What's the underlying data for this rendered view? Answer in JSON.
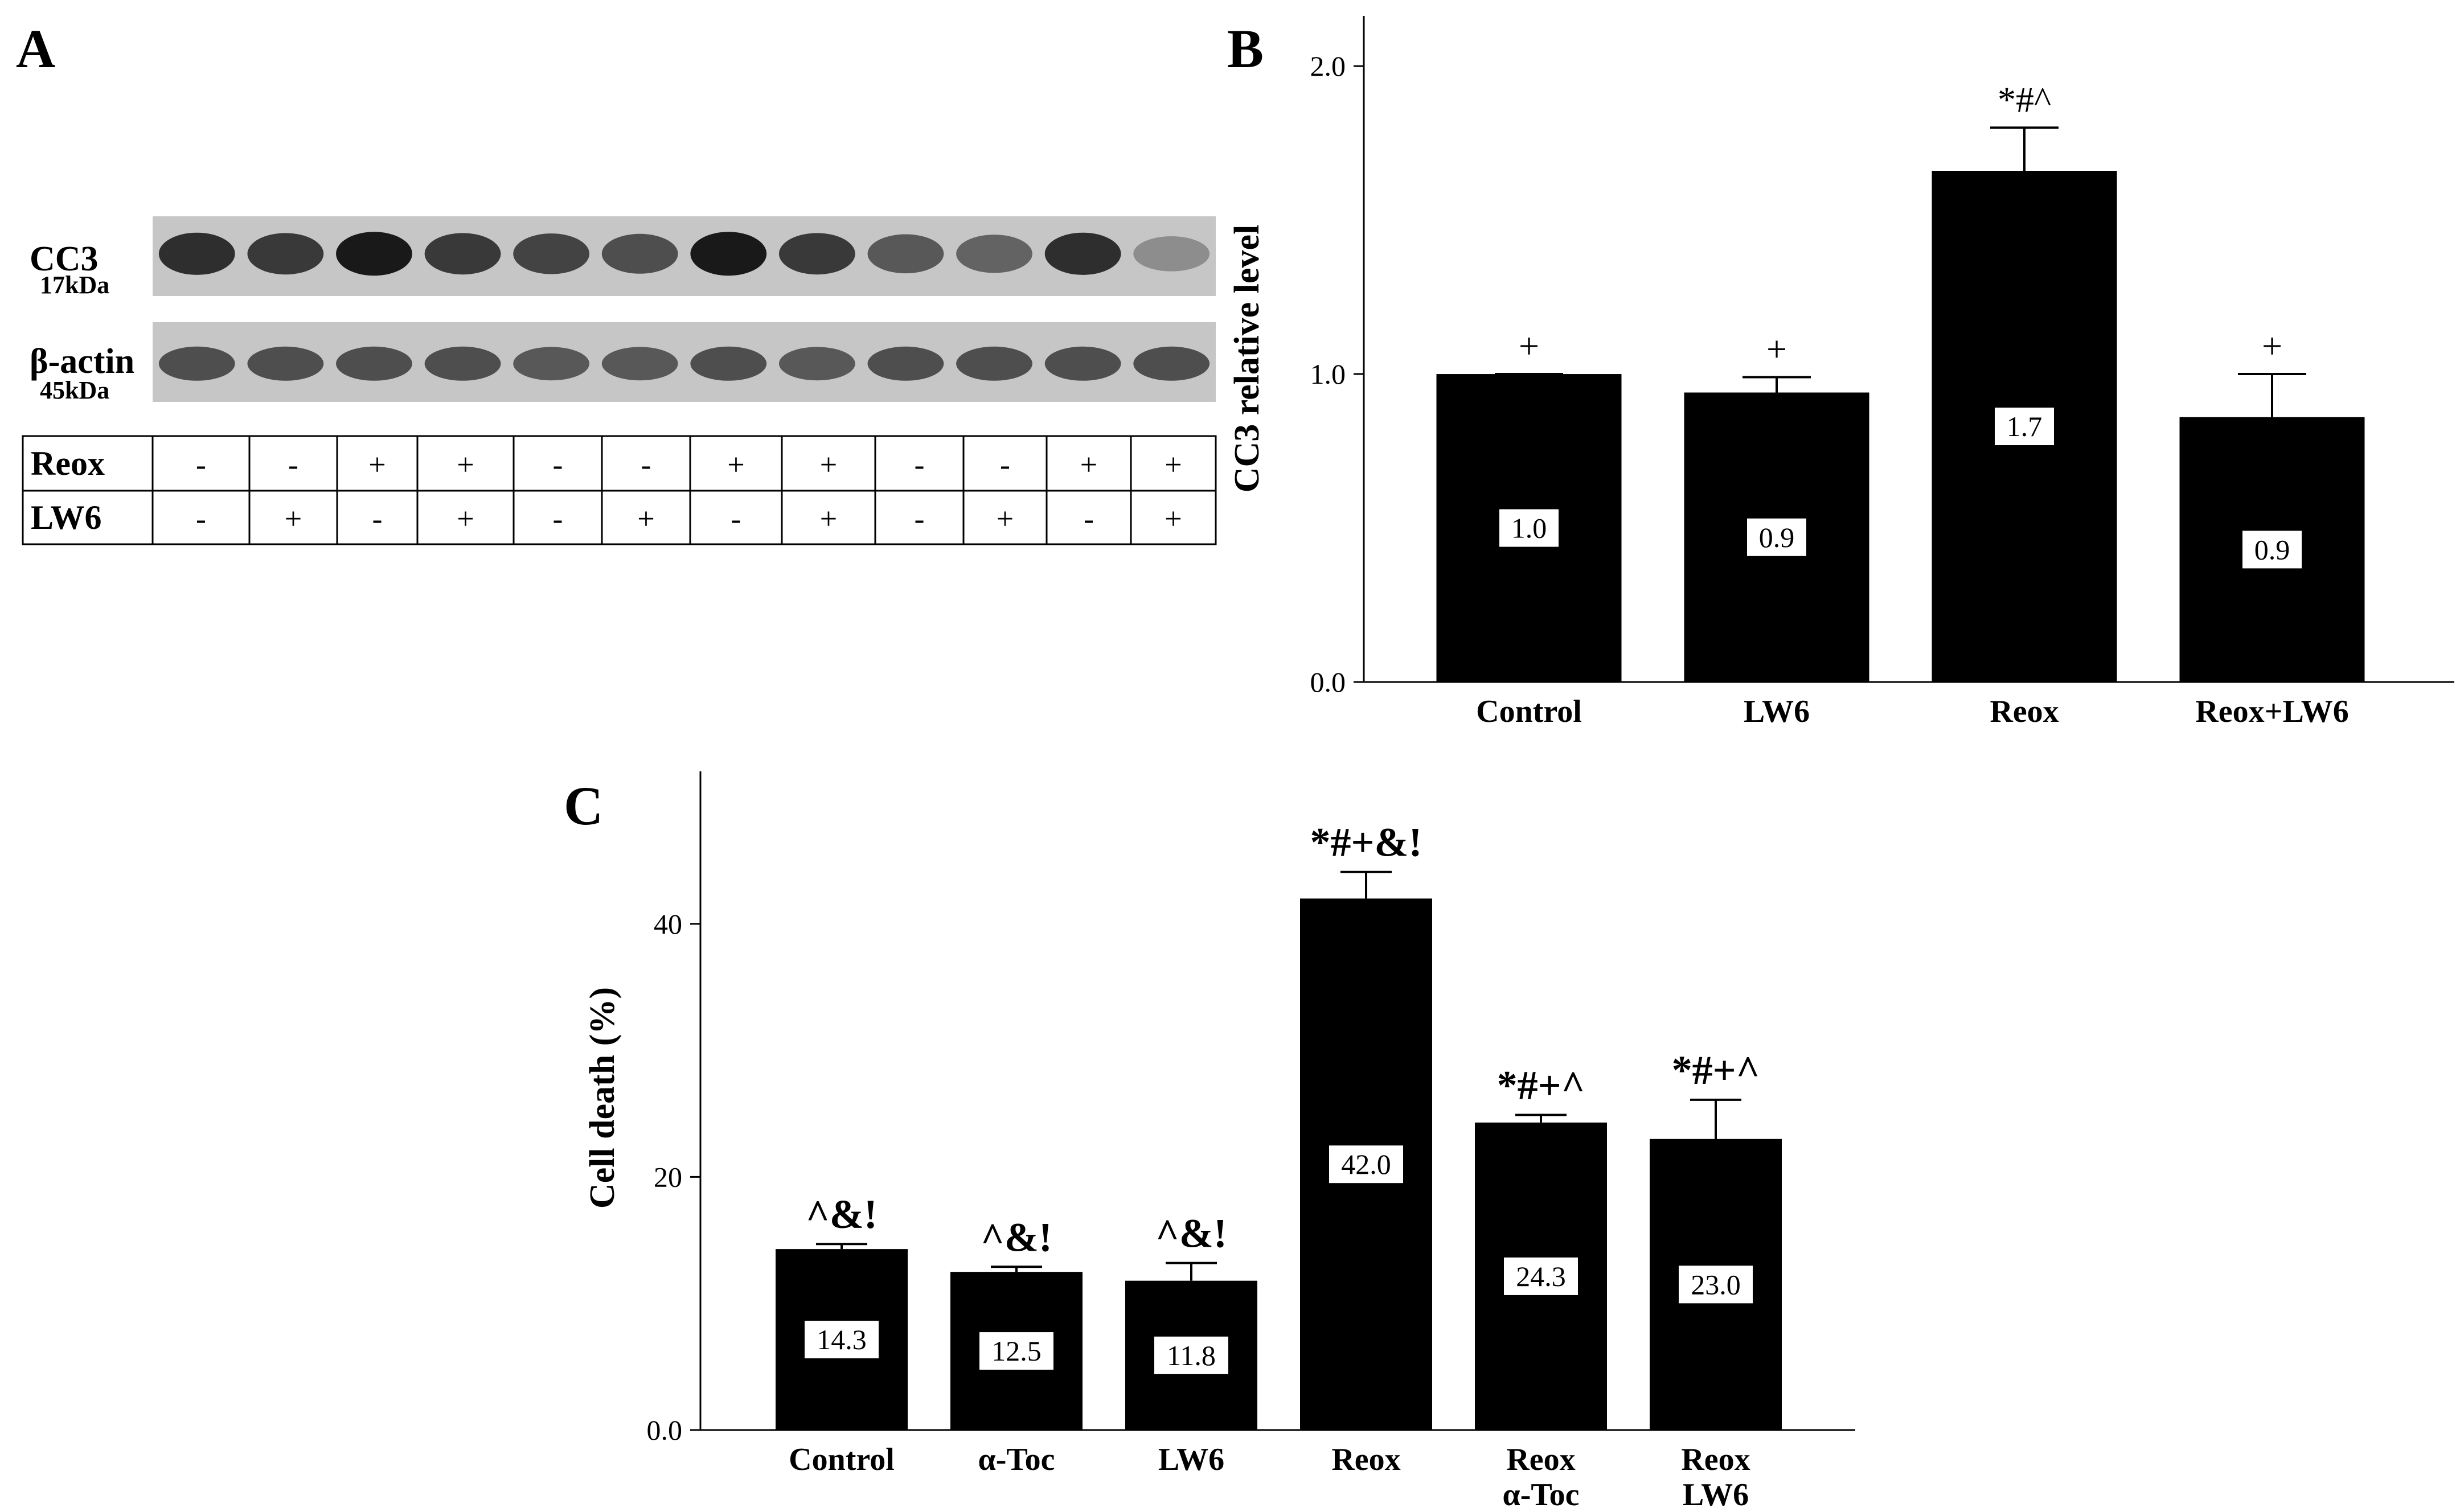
{
  "panel_a": {
    "letter": "A",
    "blots": [
      {
        "label": "CC3",
        "sublabel": "17kDa"
      },
      {
        "label": "β-actin",
        "sublabel": "45kDa"
      }
    ],
    "band_intensity_cc3": [
      0.9,
      0.85,
      1.0,
      0.85,
      0.8,
      0.75,
      1.0,
      0.85,
      0.7,
      0.65,
      0.9,
      0.45
    ],
    "band_intensity_actin": [
      0.75,
      0.75,
      0.75,
      0.75,
      0.7,
      0.7,
      0.75,
      0.7,
      0.75,
      0.75,
      0.75,
      0.75
    ],
    "conditions": [
      {
        "name": "Reox",
        "values": [
          "-",
          "-",
          "+",
          "+",
          "-",
          "-",
          "+",
          "+",
          "-",
          "-",
          "+",
          "+"
        ]
      },
      {
        "name": "LW6",
        "values": [
          "-",
          "+",
          "-",
          "+",
          "-",
          "+",
          "-",
          "+",
          "-",
          "+",
          "-",
          "+"
        ]
      }
    ]
  },
  "chart_data": [
    {
      "panel": "B",
      "type": "bar",
      "categories": [
        "Control",
        "LW6",
        "Reox",
        "Reox+LW6"
      ],
      "values": [
        1.0,
        0.94,
        1.66,
        0.86
      ],
      "errors": [
        0.0,
        0.05,
        0.14,
        0.14
      ],
      "value_labels": [
        "1.0",
        "0.9",
        "1.7",
        "0.9"
      ],
      "annotations": [
        "+",
        "+",
        "*#^",
        "+"
      ],
      "ylabel": "CC3 relative level",
      "yticks": [
        "0.0",
        "1.0",
        "2.0"
      ],
      "ylim": [
        0,
        2.1
      ],
      "bar_color": "#000000"
    },
    {
      "panel": "C",
      "type": "bar",
      "categories": [
        "Control",
        "α-Toc",
        "LW6",
        "Reox",
        "Reox\nα-Toc",
        "Reox\nLW6"
      ],
      "values": [
        14.3,
        12.5,
        11.8,
        42.0,
        24.3,
        23.0
      ],
      "errors": [
        0.4,
        0.4,
        1.4,
        2.1,
        0.6,
        3.1
      ],
      "value_labels": [
        "14.3",
        "12.5",
        "11.8",
        "42.0",
        "24.3",
        "23.0"
      ],
      "annotations": [
        "^&!",
        "^&!",
        "^&!",
        "*#+&!",
        "*#+^",
        "*#+^"
      ],
      "ylabel": "Cell death (%)",
      "yticks": [
        "0.0",
        "20",
        "40"
      ],
      "ylim": [
        0,
        52.5
      ],
      "bar_color": "#000000"
    }
  ]
}
